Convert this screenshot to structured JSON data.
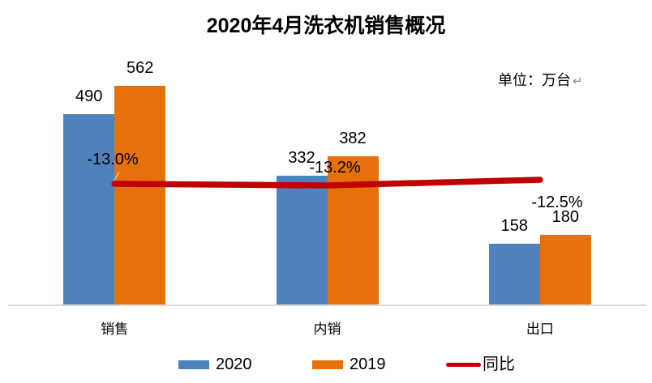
{
  "title": "2020年4月洗衣机销售概况",
  "unit_note": {
    "text": "单位：万台",
    "paragraph_mark": "↵"
  },
  "colors": {
    "bar_2020": "#4F81BD",
    "bar_2019": "#E6710B",
    "yoy_line": "#C00000",
    "axis_line": "#D9D9D9",
    "leader_line": "#BFBFBF",
    "paragraph_mark": "#8C8C8C",
    "text": "#000000"
  },
  "legend": {
    "items": [
      {
        "label": "2020",
        "swatch": "bar",
        "color": "#4F81BD"
      },
      {
        "label": "2019",
        "swatch": "bar",
        "color": "#E6710B"
      },
      {
        "label": "同比",
        "swatch": "line",
        "color": "#C00000"
      }
    ]
  },
  "chart_data": {
    "type": "bar",
    "title": "2020年4月洗衣机销售概况",
    "unit": "万台",
    "categories": [
      "销售",
      "内销",
      "出口"
    ],
    "series": [
      {
        "name": "2020",
        "type": "bar",
        "axis": "primary",
        "color": "#4F81BD",
        "values": [
          490,
          332,
          158
        ]
      },
      {
        "name": "2019",
        "type": "bar",
        "axis": "primary",
        "color": "#E6710B",
        "values": [
          562,
          382,
          180
        ]
      },
      {
        "name": "同比",
        "type": "line",
        "axis": "secondary",
        "color": "#C00000",
        "values": [
          -13.0,
          -13.2,
          -12.5
        ],
        "labels": [
          "-13.0%",
          "-13.2%",
          "-12.5%"
        ]
      }
    ],
    "xlabel": "",
    "ylabel": "",
    "ylim": [
      0,
      600
    ],
    "grid": false,
    "axis_ticks_visible": false,
    "legend_position": "bottom"
  }
}
